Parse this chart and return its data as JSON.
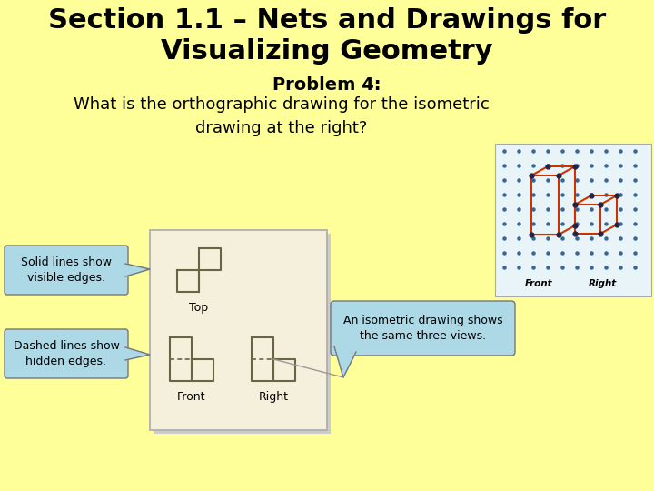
{
  "bg_color": "#FFFF99",
  "title_line1": "Section 1.1 – Nets and Drawings for",
  "title_line2": "Visualizing Geometry",
  "title_fontsize": 22,
  "problem_label": "Problem 4:",
  "problem_fontsize": 14,
  "question_text": "What is the orthographic drawing for the isometric\ndrawing at the right?",
  "question_fontsize": 13,
  "callout1_text": "Solid lines show\nvisible edges.",
  "callout2_text": "Dashed lines show\nhidden edges.",
  "callout3_text": "An isometric drawing shows\nthe same three views.",
  "callout_fontsize": 9,
  "callout_bg": "#ADD8E6",
  "ortho_bg": "#F5F0DC",
  "iso_bg": "#E8F4F8",
  "shape_color": "#666644",
  "iso_color": "#CC2200",
  "dot_color": "#336699"
}
